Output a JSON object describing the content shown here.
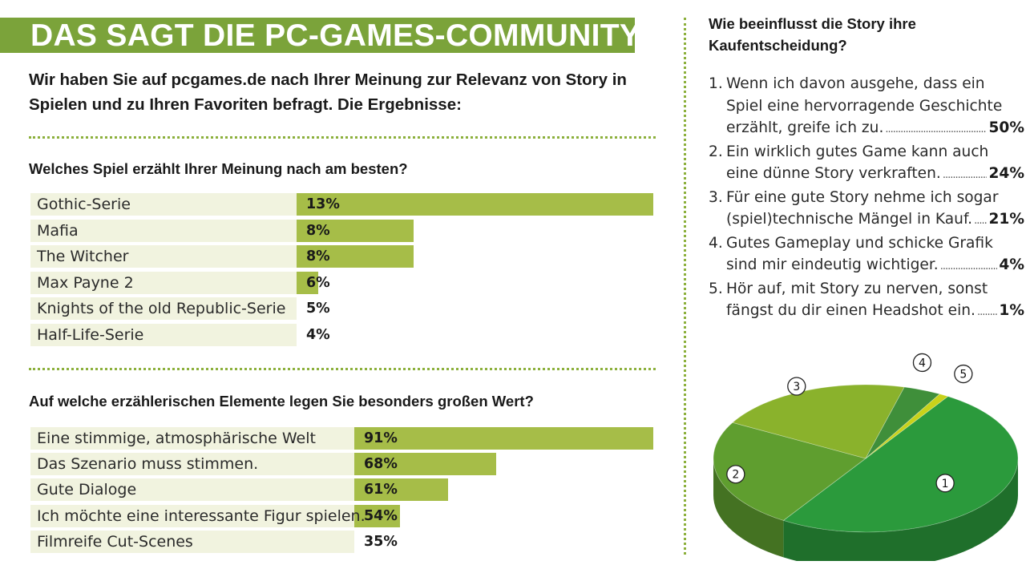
{
  "title": "DAS SAGT DIE PC-GAMES-COMMUNITY",
  "intro": "Wir haben Sie auf pcgames.de nach Ihrer Meinung zur Relevanz von Story in Spielen und zu Ihren Favoriten befragt. Die Ergebnisse:",
  "chart_data": [
    {
      "type": "bar",
      "orientation": "horizontal",
      "title": "Welches Spiel erzählt Ihrer Meinung nach am besten?",
      "categories": [
        "Gothic-Serie",
        "Mafia",
        "The Witcher",
        "Max Payne 2",
        "Knights of the old Republic-Serie",
        "Half-Life-Serie"
      ],
      "values": [
        13,
        8,
        8,
        6,
        5,
        4
      ],
      "value_labels": [
        "13%",
        "8%",
        "8%",
        "6%",
        "5%",
        "4%"
      ],
      "unit": "%",
      "bar_color": "#a6bd48"
    },
    {
      "type": "bar",
      "orientation": "horizontal",
      "title": "Auf welche erzählerischen Elemente legen Sie besonders großen Wert?",
      "categories": [
        "Eine stimmige, atmosphärische Welt",
        "Das Szenario muss stimmen.",
        "Gute Dialoge",
        "Ich möchte eine interessante Figur spielen.",
        "Filmreife Cut-Scenes"
      ],
      "values": [
        91,
        68,
        61,
        54,
        35
      ],
      "value_labels": [
        "91%",
        "68%",
        "61%",
        "54%",
        "35%"
      ],
      "unit": "%",
      "bar_color": "#a6bd48"
    },
    {
      "type": "pie",
      "title": "Wie beeinflusst die Story ihre Kaufentscheidung?",
      "answers": [
        {
          "num": "1.",
          "lines": [
            "Wenn ich davon ausgehe, dass ein",
            "Spiel eine hervorragende Geschichte"
          ],
          "last": "erzählt, greife ich zu.",
          "pct": "50%"
        },
        {
          "num": "2.",
          "lines": [
            "Ein wirklich gutes Game kann auch"
          ],
          "last": "eine dünne Story verkraften.",
          "pct": "24%"
        },
        {
          "num": "3.",
          "lines": [
            "Für eine gute Story nehme ich sogar"
          ],
          "last": "(spiel)technische Mängel in Kauf.",
          "pct": "21%"
        },
        {
          "num": "4.",
          "lines": [
            "Gutes Gameplay und schicke Grafik"
          ],
          "last": "sind mir eindeutig wichtiger.",
          "pct": "4%"
        },
        {
          "num": "5.",
          "lines": [
            "Hör auf, mit Story zu nerven, sonst"
          ],
          "last": "fängst du dir einen Headshot ein.",
          "pct": "1%"
        }
      ],
      "slices": [
        {
          "label": "1",
          "value": 50,
          "color": "#2b9a3c"
        },
        {
          "label": "2",
          "value": 24,
          "color": "#5f9e2f"
        },
        {
          "label": "3",
          "value": 21,
          "color": "#8ab22c"
        },
        {
          "label": "4",
          "value": 4,
          "color": "#3f8f3a"
        },
        {
          "label": "5",
          "value": 1,
          "color": "#c8d21a"
        }
      ]
    }
  ]
}
